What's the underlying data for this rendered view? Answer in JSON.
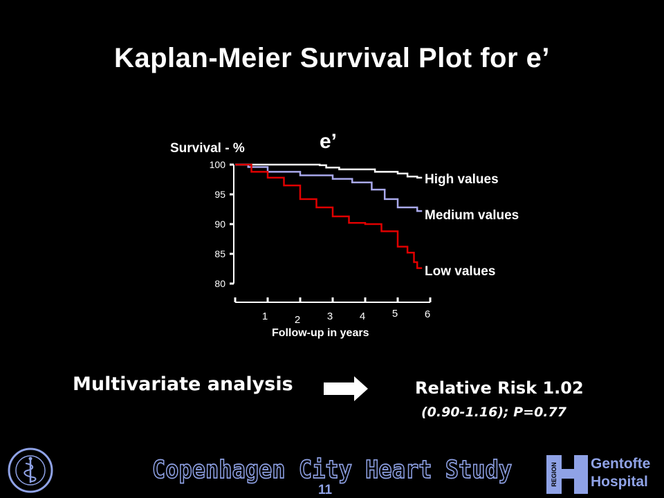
{
  "title_main": "Kaplan-Meier Survival Plot for",
  "title_symbol": "e’",
  "chart_data": {
    "type": "line",
    "title": "e’",
    "ylabel": "Survival - %",
    "xlabel": "Follow-up in years",
    "ylim": [
      80,
      100
    ],
    "xlim": [
      0,
      6
    ],
    "yticks": [
      80,
      85,
      90,
      95,
      100
    ],
    "xticks": [
      1,
      2,
      3,
      4,
      5,
      6
    ],
    "grid": false,
    "legend": "right-of-lines",
    "series": [
      {
        "name": "High values",
        "color": "#ffffff",
        "x": [
          0,
          2.6,
          2.8,
          3.2,
          4.3,
          5.0,
          5.3,
          5.6
        ],
        "y": [
          100,
          99.9,
          99.5,
          99.2,
          98.8,
          98.5,
          98.0,
          97.8
        ]
      },
      {
        "name": "Medium values",
        "color": "#a9a9ec",
        "x": [
          0,
          0.4,
          1.0,
          2.0,
          3.0,
          3.6,
          4.2,
          4.6,
          5.0,
          5.6
        ],
        "y": [
          100,
          99.6,
          98.8,
          98.2,
          97.6,
          97.0,
          95.8,
          94.2,
          92.8,
          92.2
        ]
      },
      {
        "name": "Low values",
        "color": "#e00000",
        "x": [
          0,
          0.5,
          1.0,
          1.5,
          2.0,
          2.5,
          3.0,
          3.5,
          4.0,
          4.5,
          5.0,
          5.3,
          5.5,
          5.6
        ],
        "y": [
          100,
          98.8,
          97.8,
          96.5,
          94.2,
          92.8,
          91.3,
          90.2,
          90.0,
          88.8,
          86.2,
          85.2,
          83.6,
          82.6
        ]
      }
    ]
  },
  "analysis": {
    "label": "Multivariate analysis",
    "result": "Relative Risk 1.02",
    "ci": "(0.90-1.16); P=0.77"
  },
  "footer": {
    "study": "Copenhagen City Heart Study",
    "page": "11",
    "hospital_line1": "Gentofte",
    "hospital_line2": "Hospital",
    "region_badge": "REGION",
    "seal_text": "SIGILLVM FACVLTATIS MEDICAE"
  },
  "colors": {
    "footer_blue": "#8fa2e6",
    "low": "#e00000",
    "medium": "#a9a9ec",
    "high": "#ffffff"
  }
}
